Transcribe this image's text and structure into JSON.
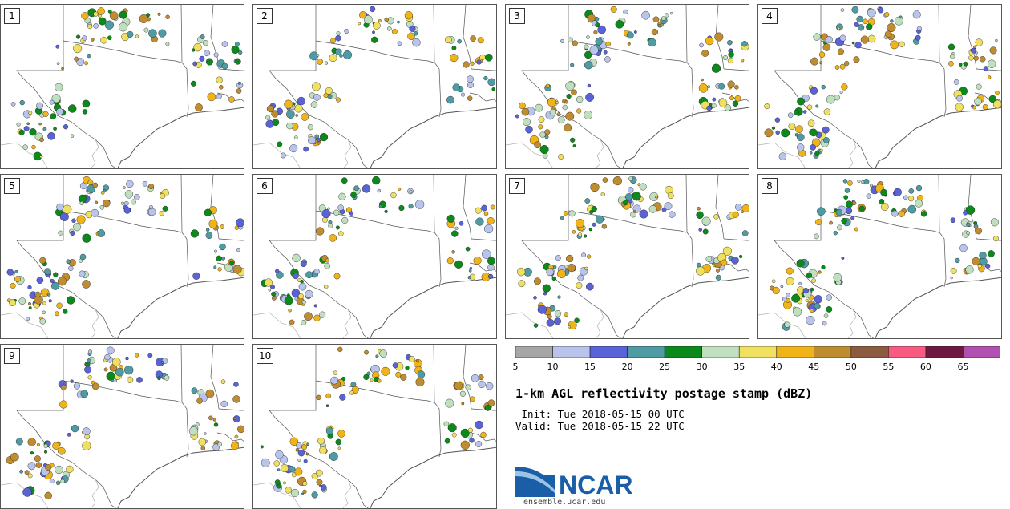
{
  "panels": [
    {
      "label": "1"
    },
    {
      "label": "2"
    },
    {
      "label": "3"
    },
    {
      "label": "4"
    },
    {
      "label": "5"
    },
    {
      "label": "6"
    },
    {
      "label": "7"
    },
    {
      "label": "8"
    },
    {
      "label": "9"
    },
    {
      "label": "10"
    }
  ],
  "legend": {
    "ticks": [
      "5",
      "10",
      "15",
      "20",
      "25",
      "30",
      "35",
      "40",
      "45",
      "50",
      "55",
      "60",
      "65"
    ],
    "colors": [
      "#a6a6a6",
      "#b8c4ec",
      "#5a62d8",
      "#4f9ba3",
      "#0b8a1b",
      "#bfdfbf",
      "#f0e060",
      "#f0b418",
      "#c08c30",
      "#8c5c40",
      "#f85a82",
      "#6e1a40",
      "#b050b0"
    ]
  },
  "title": "1-km AGL reflectivity postage stamp (dBZ)",
  "init_line": " Init: Tue 2018-05-15 00 UTC",
  "valid_line": "Valid: Tue 2018-05-15 22 UTC",
  "logo_text": "NCAR",
  "website": "ensemble.ucar.edu"
}
